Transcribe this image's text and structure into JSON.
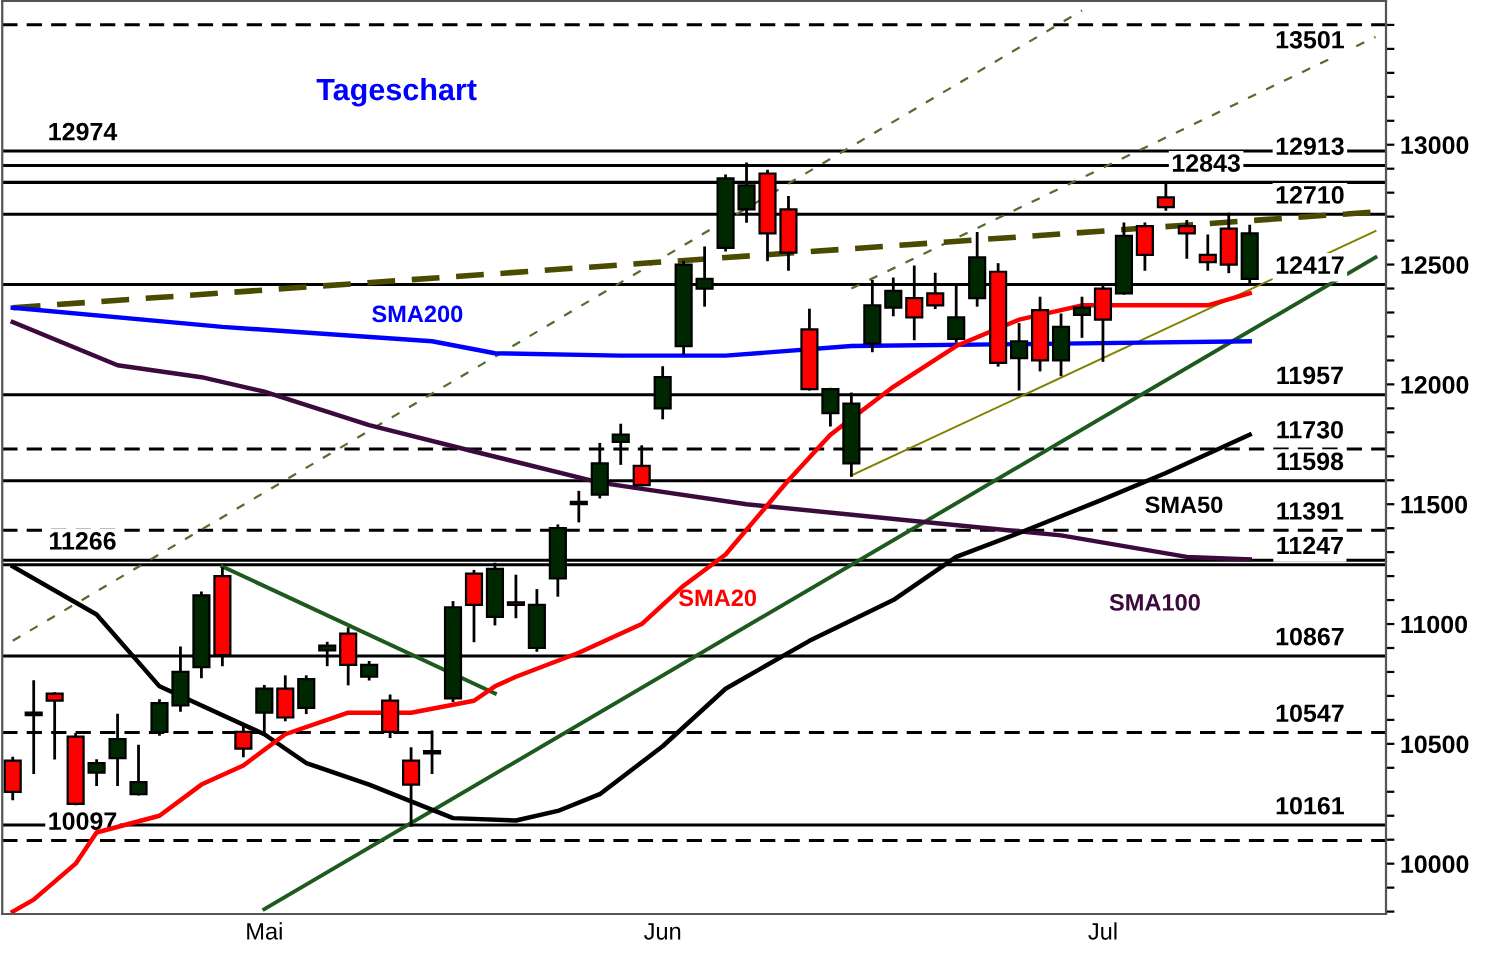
{
  "chart_data": {
    "type": "candlestick",
    "title": "Tageschart",
    "categories": [
      null,
      null,
      null,
      null,
      null,
      null,
      null,
      null,
      null,
      null,
      null,
      null,
      "Mai",
      null,
      null,
      null,
      null,
      null,
      null,
      null,
      null,
      null,
      null,
      null,
      null,
      null,
      null,
      null,
      null,
      null,
      null,
      "Jun",
      null,
      null,
      null,
      null,
      null,
      null,
      null,
      null,
      null,
      null,
      null,
      null,
      null,
      null,
      null,
      null,
      null,
      null,
      null,
      null,
      "Jul",
      null,
      null,
      null,
      null,
      null,
      null,
      null,
      null,
      null,
      null,
      null,
      null,
      null
    ],
    "ohlc": [
      [
        10430,
        10440,
        10270,
        10300
      ],
      [
        10620,
        10760,
        10380,
        10630
      ],
      [
        10710,
        10710,
        10440,
        10680
      ],
      [
        10530,
        10540,
        10250,
        10250
      ],
      [
        10380,
        10430,
        10330,
        10420
      ],
      [
        10440,
        10620,
        10330,
        10520
      ],
      [
        10290,
        10490,
        10290,
        10340
      ],
      [
        10550,
        10680,
        10540,
        10670
      ],
      [
        10660,
        10900,
        10640,
        10800
      ],
      [
        10820,
        11130,
        10780,
        11120
      ],
      [
        11200,
        11230,
        10830,
        10870
      ],
      [
        10550,
        10570,
        10450,
        10480
      ],
      [
        10630,
        10740,
        10550,
        10730
      ],
      [
        10730,
        10780,
        10600,
        10610
      ],
      [
        10650,
        10780,
        10630,
        10770
      ],
      [
        10890,
        10920,
        10830,
        10910
      ],
      [
        10960,
        10980,
        10750,
        10830
      ],
      [
        10780,
        10840,
        10770,
        10830
      ],
      [
        10680,
        10700,
        10530,
        10550
      ],
      [
        10430,
        10480,
        10160,
        10330
      ],
      [
        10460,
        10550,
        10380,
        10470
      ],
      [
        10690,
        11090,
        10680,
        11070
      ],
      [
        11210,
        11220,
        10930,
        11080
      ],
      [
        11030,
        11250,
        11000,
        11230
      ],
      [
        11090,
        11200,
        11030,
        11080
      ],
      [
        10900,
        11140,
        10890,
        11080
      ],
      [
        11190,
        11410,
        11120,
        11400
      ],
      [
        11500,
        11550,
        11430,
        11510
      ],
      [
        11540,
        11750,
        11530,
        11670
      ],
      [
        11760,
        11830,
        11670,
        11790
      ],
      [
        11660,
        11740,
        11580,
        11580
      ],
      [
        11900,
        12070,
        11860,
        12030
      ],
      [
        12160,
        12510,
        12130,
        12500
      ],
      [
        12400,
        12570,
        12330,
        12440
      ],
      [
        12570,
        12870,
        12560,
        12860
      ],
      [
        12730,
        12920,
        12680,
        12830
      ],
      [
        12880,
        12890,
        12520,
        12630
      ],
      [
        12730,
        12780,
        12480,
        12550
      ],
      [
        12230,
        12310,
        11980,
        11980
      ],
      [
        11880,
        11980,
        11830,
        11980
      ],
      [
        11670,
        11960,
        11620,
        11920
      ],
      [
        12170,
        12430,
        12140,
        12330
      ],
      [
        12320,
        12440,
        12290,
        12390
      ],
      [
        12360,
        12490,
        12190,
        12280
      ],
      [
        12380,
        12460,
        12320,
        12330
      ],
      [
        12190,
        12410,
        12180,
        12280
      ],
      [
        12360,
        12630,
        12330,
        12530
      ],
      [
        12470,
        12500,
        12080,
        12090
      ],
      [
        12110,
        12250,
        11980,
        12180
      ],
      [
        12310,
        12360,
        12060,
        12100
      ],
      [
        12100,
        12290,
        12040,
        12240
      ],
      [
        12290,
        12360,
        12200,
        12320
      ],
      [
        12400,
        12410,
        12100,
        12270
      ],
      [
        12380,
        12670,
        12380,
        12620
      ],
      [
        12660,
        12670,
        12480,
        12540
      ],
      [
        12780,
        12840,
        12730,
        12740
      ],
      [
        12660,
        12680,
        12530,
        12630
      ],
      [
        12540,
        12620,
        12480,
        12510
      ],
      [
        12650,
        12710,
        12470,
        12500
      ],
      [
        12440,
        12660,
        12420,
        12630
      ],
      null,
      null,
      null,
      null,
      null,
      null
    ],
    "colors": [
      "#ff0000",
      "#002800",
      "#ff0000",
      "#ff0000",
      "#002800",
      "#002800",
      "#002800",
      "#002800",
      "#002800",
      "#002800",
      "#ff0000",
      "#ff0000",
      "#002800",
      "#ff0000",
      "#002800",
      "#002800",
      "#ff0000",
      "#002800",
      "#ff0000",
      "#ff0000",
      "#002800",
      "#002800",
      "#ff0000",
      "#002800",
      "#ff0000",
      "#002800",
      "#002800",
      "#002800",
      "#002800",
      "#002800",
      "#ff0000",
      "#002800",
      "#002800",
      "#002800",
      "#002800",
      "#002800",
      "#ff0000",
      "#ff0000",
      "#ff0000",
      "#002800",
      "#002800",
      "#002800",
      "#002800",
      "#ff0000",
      "#ff0000",
      "#002800",
      "#002800",
      "#ff0000",
      "#002800",
      "#ff0000",
      "#002800",
      "#002800",
      "#ff0000",
      "#002800",
      "#ff0000",
      "#ff0000",
      "#ff0000",
      "#ff0000",
      "#ff0000",
      "#002800",
      null,
      null,
      null,
      null,
      null,
      null
    ],
    "series": [
      {
        "type": "line",
        "color": "#556b2f",
        "line_style": "dotted",
        "values": [
          10930,
          null,
          null,
          null,
          null,
          null,
          null,
          null,
          null,
          null,
          null,
          null,
          null,
          null,
          null,
          null,
          null,
          null,
          null,
          null,
          null,
          null,
          null,
          null,
          null,
          null,
          null,
          null,
          null,
          null,
          null,
          null,
          null,
          null,
          null,
          null,
          null,
          null,
          null,
          null,
          null,
          null,
          null,
          null,
          null,
          null,
          null,
          null,
          null,
          null,
          null,
          13560,
          null,
          null,
          null,
          null,
          null,
          null,
          null,
          null,
          null,
          null,
          null,
          null,
          null,
          null
        ]
      },
      {
        "type": "line",
        "color": "#556b2f",
        "line_style": "dotted",
        "values": [
          null,
          null,
          null,
          null,
          null,
          null,
          null,
          null,
          null,
          null,
          null,
          null,
          null,
          null,
          null,
          null,
          null,
          null,
          null,
          null,
          null,
          null,
          null,
          null,
          null,
          null,
          null,
          null,
          null,
          null,
          null,
          null,
          null,
          null,
          null,
          null,
          null,
          null,
          null,
          null,
          12400,
          null,
          null,
          null,
          null,
          null,
          null,
          null,
          null,
          null,
          null,
          null,
          null,
          null,
          null,
          null,
          null,
          null,
          null,
          null,
          null,
          null,
          null,
          null,
          null,
          13450
        ]
      },
      {
        "type": "line",
        "color": "#808000",
        "line_style": "solid",
        "values": [
          null,
          null,
          null,
          null,
          null,
          null,
          null,
          null,
          null,
          null,
          null,
          null,
          null,
          null,
          null,
          null,
          null,
          null,
          null,
          null,
          null,
          null,
          null,
          null,
          null,
          null,
          null,
          null,
          null,
          null,
          null,
          null,
          null,
          null,
          null,
          null,
          null,
          null,
          null,
          null,
          11620,
          null,
          null,
          null,
          null,
          null,
          null,
          null,
          null,
          null,
          null,
          null,
          null,
          null,
          null,
          null,
          null,
          null,
          null,
          null,
          null,
          null,
          null,
          null,
          null,
          12640
        ]
      },
      {
        "type": "line",
        "color": "#4a4a00",
        "line_style": "dashed",
        "values": [
          12320,
          null,
          null,
          null,
          null,
          null,
          null,
          null,
          null,
          null,
          null,
          null,
          null,
          null,
          null,
          null,
          null,
          null,
          null,
          null,
          null,
          null,
          null,
          null,
          null,
          null,
          null,
          null,
          null,
          null,
          null,
          null,
          null,
          null,
          null,
          null,
          null,
          null,
          null,
          null,
          null,
          null,
          null,
          null,
          null,
          null,
          null,
          null,
          null,
          null,
          null,
          null,
          null,
          null,
          null,
          null,
          null,
          null,
          null,
          null,
          null,
          null,
          null,
          null,
          null,
          12720
        ]
      },
      {
        "type": "line",
        "color": "#1e5a1e",
        "line_style": "solid",
        "values": [
          null,
          null,
          null,
          null,
          null,
          null,
          null,
          null,
          null,
          null,
          null,
          null,
          9810,
          null,
          null,
          null,
          null,
          null,
          null,
          null,
          null,
          null,
          null,
          null,
          null,
          null,
          null,
          null,
          null,
          null,
          null,
          null,
          null,
          null,
          null,
          null,
          null,
          null,
          null,
          null,
          null,
          null,
          null,
          null,
          null,
          null,
          null,
          null,
          null,
          null,
          null,
          null,
          null,
          null,
          null,
          null,
          null,
          null,
          null,
          null,
          null,
          null,
          null,
          null,
          null,
          12530
        ]
      },
      {
        "type": "line",
        "color": "#1e5a1e",
        "line_style": "solid",
        "values": [
          null,
          null,
          null,
          null,
          null,
          null,
          null,
          null,
          null,
          null,
          11240,
          null,
          null,
          null,
          null,
          null,
          null,
          null,
          null,
          null,
          null,
          null,
          null,
          10710,
          null,
          null,
          null,
          null,
          null,
          null,
          null,
          null,
          null,
          null,
          null,
          null,
          null,
          null,
          null,
          null,
          null,
          null,
          null,
          null,
          null,
          null,
          null,
          null,
          null,
          null,
          null,
          null,
          null,
          null,
          null,
          null,
          null,
          null,
          null,
          null,
          null,
          null,
          null,
          null,
          null,
          null
        ]
      },
      {
        "type": "line",
        "name": "SMA200",
        "color": "#0000ff",
        "line_style": "solid",
        "values": [
          12320,
          null,
          null,
          null,
          null,
          null,
          null,
          null,
          null,
          null,
          12240,
          null,
          null,
          null,
          null,
          null,
          null,
          null,
          null,
          null,
          12180,
          null,
          null,
          12130,
          null,
          null,
          null,
          null,
          null,
          12120,
          null,
          null,
          null,
          null,
          12120,
          null,
          null,
          null,
          null,
          null,
          12160,
          null,
          null,
          null,
          null,
          null,
          null,
          null,
          null,
          null,
          12170,
          null,
          null,
          null,
          null,
          null,
          null,
          null,
          null,
          12180,
          null,
          null,
          null,
          null,
          null,
          null
        ]
      },
      {
        "type": "line",
        "name": "SMA100",
        "color": "#3c0a3c",
        "line_style": "solid",
        "values": [
          12260,
          null,
          null,
          null,
          null,
          12080,
          null,
          null,
          null,
          12030,
          null,
          null,
          11970,
          null,
          null,
          null,
          null,
          11830,
          null,
          null,
          null,
          null,
          11720,
          null,
          null,
          null,
          null,
          null,
          11590,
          null,
          null,
          null,
          null,
          null,
          null,
          11500,
          null,
          null,
          null,
          null,
          null,
          null,
          null,
          11430,
          null,
          null,
          null,
          null,
          null,
          null,
          11370,
          null,
          null,
          null,
          null,
          null,
          11280,
          null,
          null,
          11270,
          null,
          null,
          null,
          null,
          null,
          null
        ]
      },
      {
        "type": "line",
        "name": "SMA50",
        "color": "#000000",
        "line_style": "solid",
        "values": [
          11240,
          null,
          null,
          null,
          11040,
          null,
          null,
          10740,
          null,
          null,
          null,
          null,
          10540,
          null,
          10420,
          null,
          null,
          10330,
          null,
          null,
          null,
          10190,
          null,
          null,
          10180,
          null,
          10220,
          null,
          10290,
          null,
          null,
          10490,
          null,
          null,
          10730,
          null,
          null,
          null,
          10930,
          null,
          null,
          null,
          11100,
          null,
          null,
          11280,
          null,
          null,
          11380,
          null,
          null,
          null,
          11520,
          null,
          null,
          11630,
          null,
          null,
          null,
          11790,
          null,
          null,
          null,
          null,
          null,
          null
        ]
      },
      {
        "type": "line",
        "name": "SMA20",
        "color": "#ff0000",
        "line_style": "solid",
        "values": [
          9800,
          9850,
          null,
          10000,
          10130,
          null,
          null,
          10200,
          null,
          10330,
          null,
          10410,
          null,
          10540,
          null,
          null,
          10630,
          null,
          null,
          10630,
          null,
          null,
          10680,
          10740,
          10780,
          null,
          null,
          10880,
          null,
          null,
          11000,
          null,
          11160,
          null,
          11290,
          null,
          null,
          11600,
          null,
          11790,
          null,
          null,
          11990,
          null,
          null,
          12160,
          null,
          null,
          12270,
          null,
          null,
          12330,
          null,
          null,
          12330,
          null,
          null,
          12330,
          null,
          12380,
          null,
          null,
          null,
          null,
          null,
          null
        ]
      }
    ],
    "annotations": [
      {
        "text": "12974",
        "y": 12974
      },
      {
        "text": "11266",
        "y": 11266
      },
      {
        "text": "10097",
        "y": 10097
      }
    ],
    "ref_lines": [
      {
        "axis": "y",
        "value": 13501,
        "label": "13501",
        "color": "#000000",
        "line_style": "dashed"
      },
      {
        "axis": "y",
        "value": 12974,
        "color": "#000000",
        "line_style": "solid"
      },
      {
        "axis": "y",
        "value": 12913,
        "label": "12913",
        "color": "#000000",
        "line_style": "solid"
      },
      {
        "axis": "y",
        "value": 12843,
        "label": "12843",
        "color": "#000000",
        "line_style": "solid"
      },
      {
        "axis": "y",
        "value": 12710,
        "label": "12710",
        "color": "#000000",
        "line_style": "solid"
      },
      {
        "axis": "y",
        "value": 12417,
        "label": "12417",
        "color": "#000000",
        "line_style": "solid"
      },
      {
        "axis": "y",
        "value": 11957,
        "label": "11957",
        "color": "#000000",
        "line_style": "solid"
      },
      {
        "axis": "y",
        "value": 11730,
        "label": "11730",
        "color": "#000000",
        "line_style": "dashed"
      },
      {
        "axis": "y",
        "value": 11598,
        "label": "11598",
        "color": "#000000",
        "line_style": "solid"
      },
      {
        "axis": "y",
        "value": 11391,
        "label": "11391",
        "color": "#000000",
        "line_style": "dashed"
      },
      {
        "axis": "y",
        "value": 11266,
        "color": "#000000",
        "line_style": "solid"
      },
      {
        "axis": "y",
        "value": 11247,
        "label": "11247",
        "color": "#000000",
        "line_style": "solid"
      },
      {
        "axis": "y",
        "value": 10867,
        "label": "10867",
        "color": "#000000",
        "line_style": "solid"
      },
      {
        "axis": "y",
        "value": 10547,
        "label": "10547",
        "color": "#000000",
        "line_style": "dashed"
      },
      {
        "axis": "y",
        "value": 10161,
        "label": "10161",
        "color": "#000000",
        "line_style": "solid"
      },
      {
        "axis": "y",
        "value": 10097,
        "color": "#000000",
        "line_style": "dashed"
      }
    ],
    "ylim": [
      9790,
      13600
    ],
    "yticks": [
      {
        "value": 9800,
        "label": null
      },
      {
        "value": 9900,
        "label": null
      },
      10000,
      {
        "value": 10100,
        "label": null
      },
      {
        "value": 10200,
        "label": null
      },
      {
        "value": 10300,
        "label": null
      },
      {
        "value": 10400,
        "label": null
      },
      10500,
      {
        "value": 10600,
        "label": null
      },
      {
        "value": 10700,
        "label": null
      },
      {
        "value": 10800,
        "label": null
      },
      {
        "value": 10900,
        "label": null
      },
      11000,
      {
        "value": 11100,
        "label": null
      },
      {
        "value": 11200,
        "label": null
      },
      {
        "value": 11300,
        "label": null
      },
      {
        "value": 11400,
        "label": null
      },
      11500,
      {
        "value": 11600,
        "label": null
      },
      {
        "value": 11700,
        "label": null
      },
      {
        "value": 11800,
        "label": null
      },
      {
        "value": 11900,
        "label": null
      },
      12000,
      {
        "value": 12100,
        "label": null
      },
      {
        "value": 12200,
        "label": null
      },
      {
        "value": 12300,
        "label": null
      },
      {
        "value": 12400,
        "label": null
      },
      12500,
      {
        "value": 12600,
        "label": null
      },
      {
        "value": 12700,
        "label": null
      },
      {
        "value": 12800,
        "label": null
      },
      {
        "value": 12900,
        "label": null
      },
      13000,
      {
        "value": 13100,
        "label": null
      },
      {
        "value": 13200,
        "label": null
      },
      {
        "value": 13300,
        "label": null
      },
      {
        "value": 13400,
        "label": null
      },
      {
        "value": 13500,
        "label": null
      }
    ],
    "grid": false,
    "legend": false
  }
}
